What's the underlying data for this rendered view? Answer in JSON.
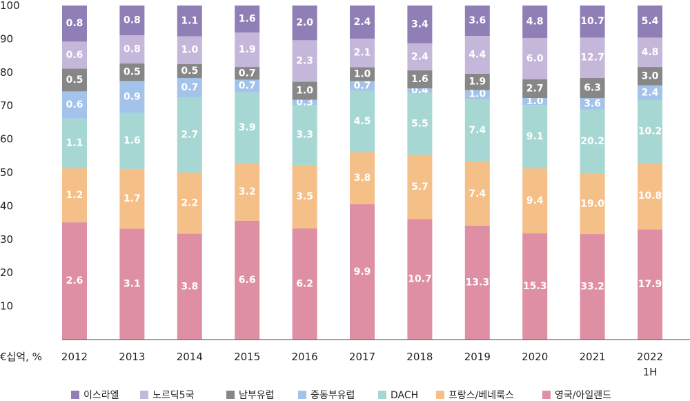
{
  "chart_data": {
    "type": "bar",
    "stacked": true,
    "unit_label": "€십억, %",
    "categories": [
      "2012",
      "2013",
      "2014",
      "2015",
      "2016",
      "2017",
      "2018",
      "2019",
      "2020",
      "2021",
      "2022\n1H"
    ],
    "ylim": [
      0,
      100
    ],
    "yticks": [
      10,
      20,
      30,
      40,
      50,
      60,
      70,
      80,
      90,
      100
    ],
    "grid": false,
    "legend_position": "bottom",
    "series": [
      {
        "name": "영국/아일랜드",
        "color": "#df8fa3",
        "share": [
          35.1,
          33.2,
          31.7,
          35.6,
          33.3,
          40.5,
          36.1,
          34.1,
          31.8,
          31.6,
          33.0
        ],
        "labels": [
          "2.6",
          "3.1",
          "3.8",
          "6.6",
          "6.2",
          "9.9",
          "10.7",
          "13.3",
          "15.3",
          "33.2",
          "17.9"
        ]
      },
      {
        "name": "프랑스/베네룩스",
        "color": "#f5bf88",
        "share": [
          16.2,
          17.9,
          18.3,
          17.3,
          19.0,
          15.6,
          19.2,
          19.0,
          19.5,
          18.1,
          19.9
        ],
        "labels": [
          "1.2",
          "1.7",
          "2.2",
          "3.2",
          "3.5",
          "3.8",
          "5.7",
          "7.4",
          "9.4",
          "19.0",
          "10.8"
        ]
      },
      {
        "name": "DACH",
        "color": "#a7d7d3",
        "share": [
          14.9,
          16.8,
          22.5,
          21.1,
          17.9,
          18.4,
          18.6,
          19.0,
          18.9,
          19.2,
          18.8
        ],
        "labels": [
          "1.1",
          "1.6",
          "2.7",
          "3.9",
          "3.3",
          "4.5",
          "5.5",
          "7.4",
          "9.1",
          "20.2",
          "10.2"
        ]
      },
      {
        "name": "중동부유럽",
        "color": "#a3c3ea",
        "share": [
          8.1,
          9.5,
          5.8,
          3.8,
          1.6,
          2.9,
          1.3,
          2.6,
          2.1,
          3.4,
          4.4
        ],
        "labels": [
          "0.6",
          "0.9",
          "0.7",
          "0.7",
          "0.3",
          "0.7",
          "0.4",
          "1.0",
          "1.0",
          "3.6",
          "2.4"
        ]
      },
      {
        "name": "남부유럽",
        "color": "#878787",
        "share": [
          6.8,
          5.3,
          4.2,
          3.8,
          5.4,
          4.1,
          5.4,
          4.9,
          5.6,
          6.0,
          5.5
        ],
        "labels": [
          "0.5",
          "0.5",
          "0.5",
          "0.7",
          "1.0",
          "1.0",
          "1.6",
          "1.9",
          "2.7",
          "6.3",
          "3.0"
        ]
      },
      {
        "name": "노르딕5국",
        "color": "#c5b7d9",
        "share": [
          8.1,
          8.4,
          8.3,
          10.3,
          12.4,
          8.6,
          8.1,
          11.3,
          12.4,
          12.1,
          8.8
        ],
        "labels": [
          "0.6",
          "0.8",
          "1.0",
          "1.9",
          "2.3",
          "2.1",
          "2.4",
          "4.4",
          "6.0",
          "12.7",
          "4.8"
        ]
      },
      {
        "name": "이스라엘",
        "color": "#8f7fb6",
        "share": [
          10.8,
          8.9,
          9.2,
          8.1,
          10.4,
          9.9,
          11.3,
          9.1,
          9.7,
          9.6,
          9.6
        ],
        "labels": [
          "0.8",
          "0.8",
          "1.1",
          "1.6",
          "2.0",
          "2.4",
          "3.4",
          "3.6",
          "4.8",
          "10.7",
          "5.4"
        ]
      }
    ]
  }
}
